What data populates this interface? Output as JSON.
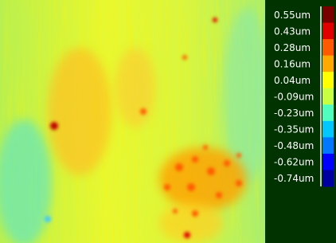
{
  "legend": {
    "items": [
      {
        "label": "0.55um",
        "color": "#7a0000"
      },
      {
        "label": "0.43um",
        "color": "#e00000"
      },
      {
        "label": "0.28um",
        "color": "#ff5a00"
      },
      {
        "label": "0.16um",
        "color": "#ffa800"
      },
      {
        "label": "0.04um",
        "color": "#ffff00"
      },
      {
        "label": "-0.09um",
        "color": "#c8ff40"
      },
      {
        "label": "-0.23um",
        "color": "#50ffc0"
      },
      {
        "label": "-0.35um",
        "color": "#00c8ff"
      },
      {
        "label": "-0.48um",
        "color": "#0078ff"
      },
      {
        "label": "-0.62um",
        "color": "#0000ff"
      },
      {
        "label": "-0.74um",
        "color": "#0000a0"
      }
    ]
  }
}
